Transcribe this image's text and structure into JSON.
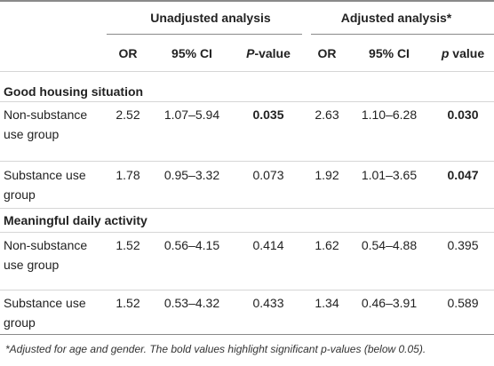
{
  "header": {
    "group_unadjusted": "Unadjusted analysis",
    "group_adjusted": "Adjusted analysis*",
    "cols": {
      "or1": "OR",
      "ci1": "95% CI",
      "p1_italic": "P",
      "p1_rest": "-value",
      "or2": "OR",
      "ci2": "95% CI",
      "p2_italic": "p",
      "p2_rest": " value"
    }
  },
  "sections": [
    {
      "title": "Good housing situation",
      "rows": [
        {
          "label": "Non-substance use group",
          "or1": "2.52",
          "ci1": "1.07–5.94",
          "p1": "0.035",
          "p1_bold": true,
          "or2": "2.63",
          "ci2": "1.10–6.28",
          "p2": "0.030",
          "p2_bold": true
        },
        {
          "label": "Substance use group",
          "or1": "1.78",
          "ci1": "0.95–3.32",
          "p1": "0.073",
          "p1_bold": false,
          "or2": "1.92",
          "ci2": "1.01–3.65",
          "p2": "0.047",
          "p2_bold": true
        }
      ]
    },
    {
      "title": "Meaningful daily activity",
      "rows": [
        {
          "label": "Non-substance use group",
          "or1": "1.52",
          "ci1": "0.56–4.15",
          "p1": "0.414",
          "p1_bold": false,
          "or2": "1.62",
          "ci2": "0.54–4.88",
          "p2": "0.395",
          "p2_bold": false
        },
        {
          "label": "Substance use group",
          "or1": "1.52",
          "ci1": "0.53–4.32",
          "p1": "0.433",
          "p1_bold": false,
          "or2": "1.34",
          "ci2": "0.46–3.91",
          "p2": "0.589",
          "p2_bold": false
        }
      ]
    }
  ],
  "footnote": "*Adjusted for age and gender. The bold values highlight significant p-values (below 0.05)."
}
